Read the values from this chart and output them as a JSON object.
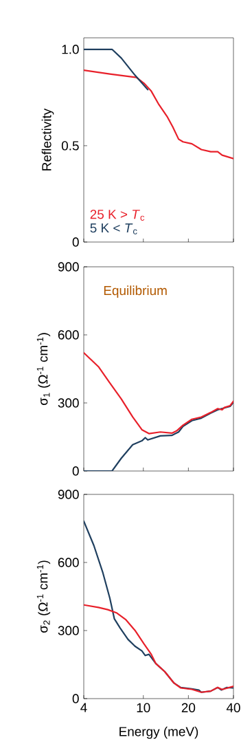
{
  "chart_data": [
    {
      "type": "line",
      "ylabel": "Reflectivity",
      "log": "x",
      "xlim": [
        4,
        40
      ],
      "xticks": [
        4,
        10,
        20,
        40
      ],
      "ylim": [
        0,
        1.06
      ],
      "yticks": [
        0,
        0.5,
        {
          "value": 1,
          "label": "1.0"
        }
      ],
      "tick_labels": "y",
      "legend": "bottom left",
      "series": [
        {
          "name": "25 K > *T*$_{c}$",
          "color": "#e8202a",
          "x": [
            4,
            5.97,
            9.0,
            10.1,
            11.3,
            12.6,
            14.4,
            15.7,
            17.2,
            18.4,
            21.1,
            24.4,
            28.2,
            31.4,
            33.6,
            40
          ],
          "values": [
            0.892,
            0.872,
            0.854,
            0.824,
            0.783,
            0.718,
            0.652,
            0.599,
            0.534,
            0.52,
            0.51,
            0.48,
            0.469,
            0.469,
            0.451,
            0.433
          ]
        },
        {
          "name": "5 K < *T*$_{c}$",
          "color": "#1f3f5f",
          "x": [
            4,
            6.18,
            7.12,
            8.79,
            10.7
          ],
          "values": [
            1.0,
            1.0,
            0.955,
            0.866,
            0.791
          ]
        }
      ]
    },
    {
      "type": "line",
      "ylabel": "σ$_{1}$ (Ω$^{-1}$ cm$^{-1}$)",
      "annotations": [
        "Equilibrium"
      ],
      "log": "x",
      "xlim": [
        4,
        40
      ],
      "xticks": [
        4,
        10,
        20,
        40
      ],
      "ylim": [
        0,
        900
      ],
      "yticks": [
        0,
        300,
        600,
        900
      ],
      "tick_labels": "y",
      "series": [
        {
          "color": "#1f3f5f",
          "x": [
            4,
            6.18,
            7.12,
            8.49,
            9.78,
            10.3,
            10.7,
            13.0,
            15.5,
            17.2,
            18.4,
            21.1,
            24.4,
            28.2,
            31.4,
            34.8,
            38.0,
            40
          ],
          "values": [
            0,
            0,
            56,
            116,
            133,
            147,
            137,
            155,
            157,
            172,
            197,
            222,
            233,
            255,
            270,
            278,
            285,
            303
          ]
        },
        {
          "color": "#e8202a",
          "x": [
            4,
            5.01,
            5.96,
            7.12,
            8.49,
            9.78,
            10.9,
            13.0,
            15.5,
            16.7,
            18.4,
            21.1,
            24.4,
            28.2,
            31.4,
            33.6,
            34.8,
            38.0,
            40
          ],
          "values": [
            521,
            460,
            389,
            318,
            238,
            182,
            165,
            172,
            167,
            177,
            202,
            228,
            238,
            258,
            275,
            270,
            280,
            288,
            308
          ]
        }
      ]
    },
    {
      "type": "line",
      "xlabel": "Energy (meV)",
      "ylabel": "σ$_{2}$ (Ω$^{-1}$ cm$^{-1}$)",
      "log": "x",
      "xlim": [
        4,
        40
      ],
      "xticks": [
        4,
        10,
        20,
        40
      ],
      "ylim": [
        0,
        900
      ],
      "yticks": [
        0,
        300,
        600,
        900
      ],
      "series": [
        {
          "color": "#1f3f5f",
          "x": [
            4,
            4.67,
            5.37,
            5.97,
            6.4,
            7.0,
            7.9,
            8.79,
            9.78,
            10.3,
            10.9,
            12.1,
            13.9,
            16.0,
            17.8,
            21.1,
            23.5,
            24.4,
            28.2,
            31.4,
            33.2,
            36.1,
            40
          ],
          "values": [
            782,
            675,
            554,
            443,
            352,
            311,
            261,
            231,
            210,
            190,
            195,
            155,
            119,
            69,
            49,
            43,
            38,
            28,
            33,
            49,
            38,
            49,
            47
          ]
        },
        {
          "color": "#e8202a",
          "x": [
            4,
            5.01,
            5.79,
            6.66,
            7.66,
            8.79,
            10.1,
            11.3,
            12.1,
            13.9,
            16.0,
            17.8,
            21.1,
            24.4,
            28.2,
            31.4,
            33.6,
            40
          ],
          "values": [
            413,
            402,
            392,
            377,
            347,
            301,
            241,
            195,
            155,
            119,
            69,
            47,
            41,
            28,
            33,
            49,
            40,
            54
          ]
        }
      ]
    }
  ]
}
